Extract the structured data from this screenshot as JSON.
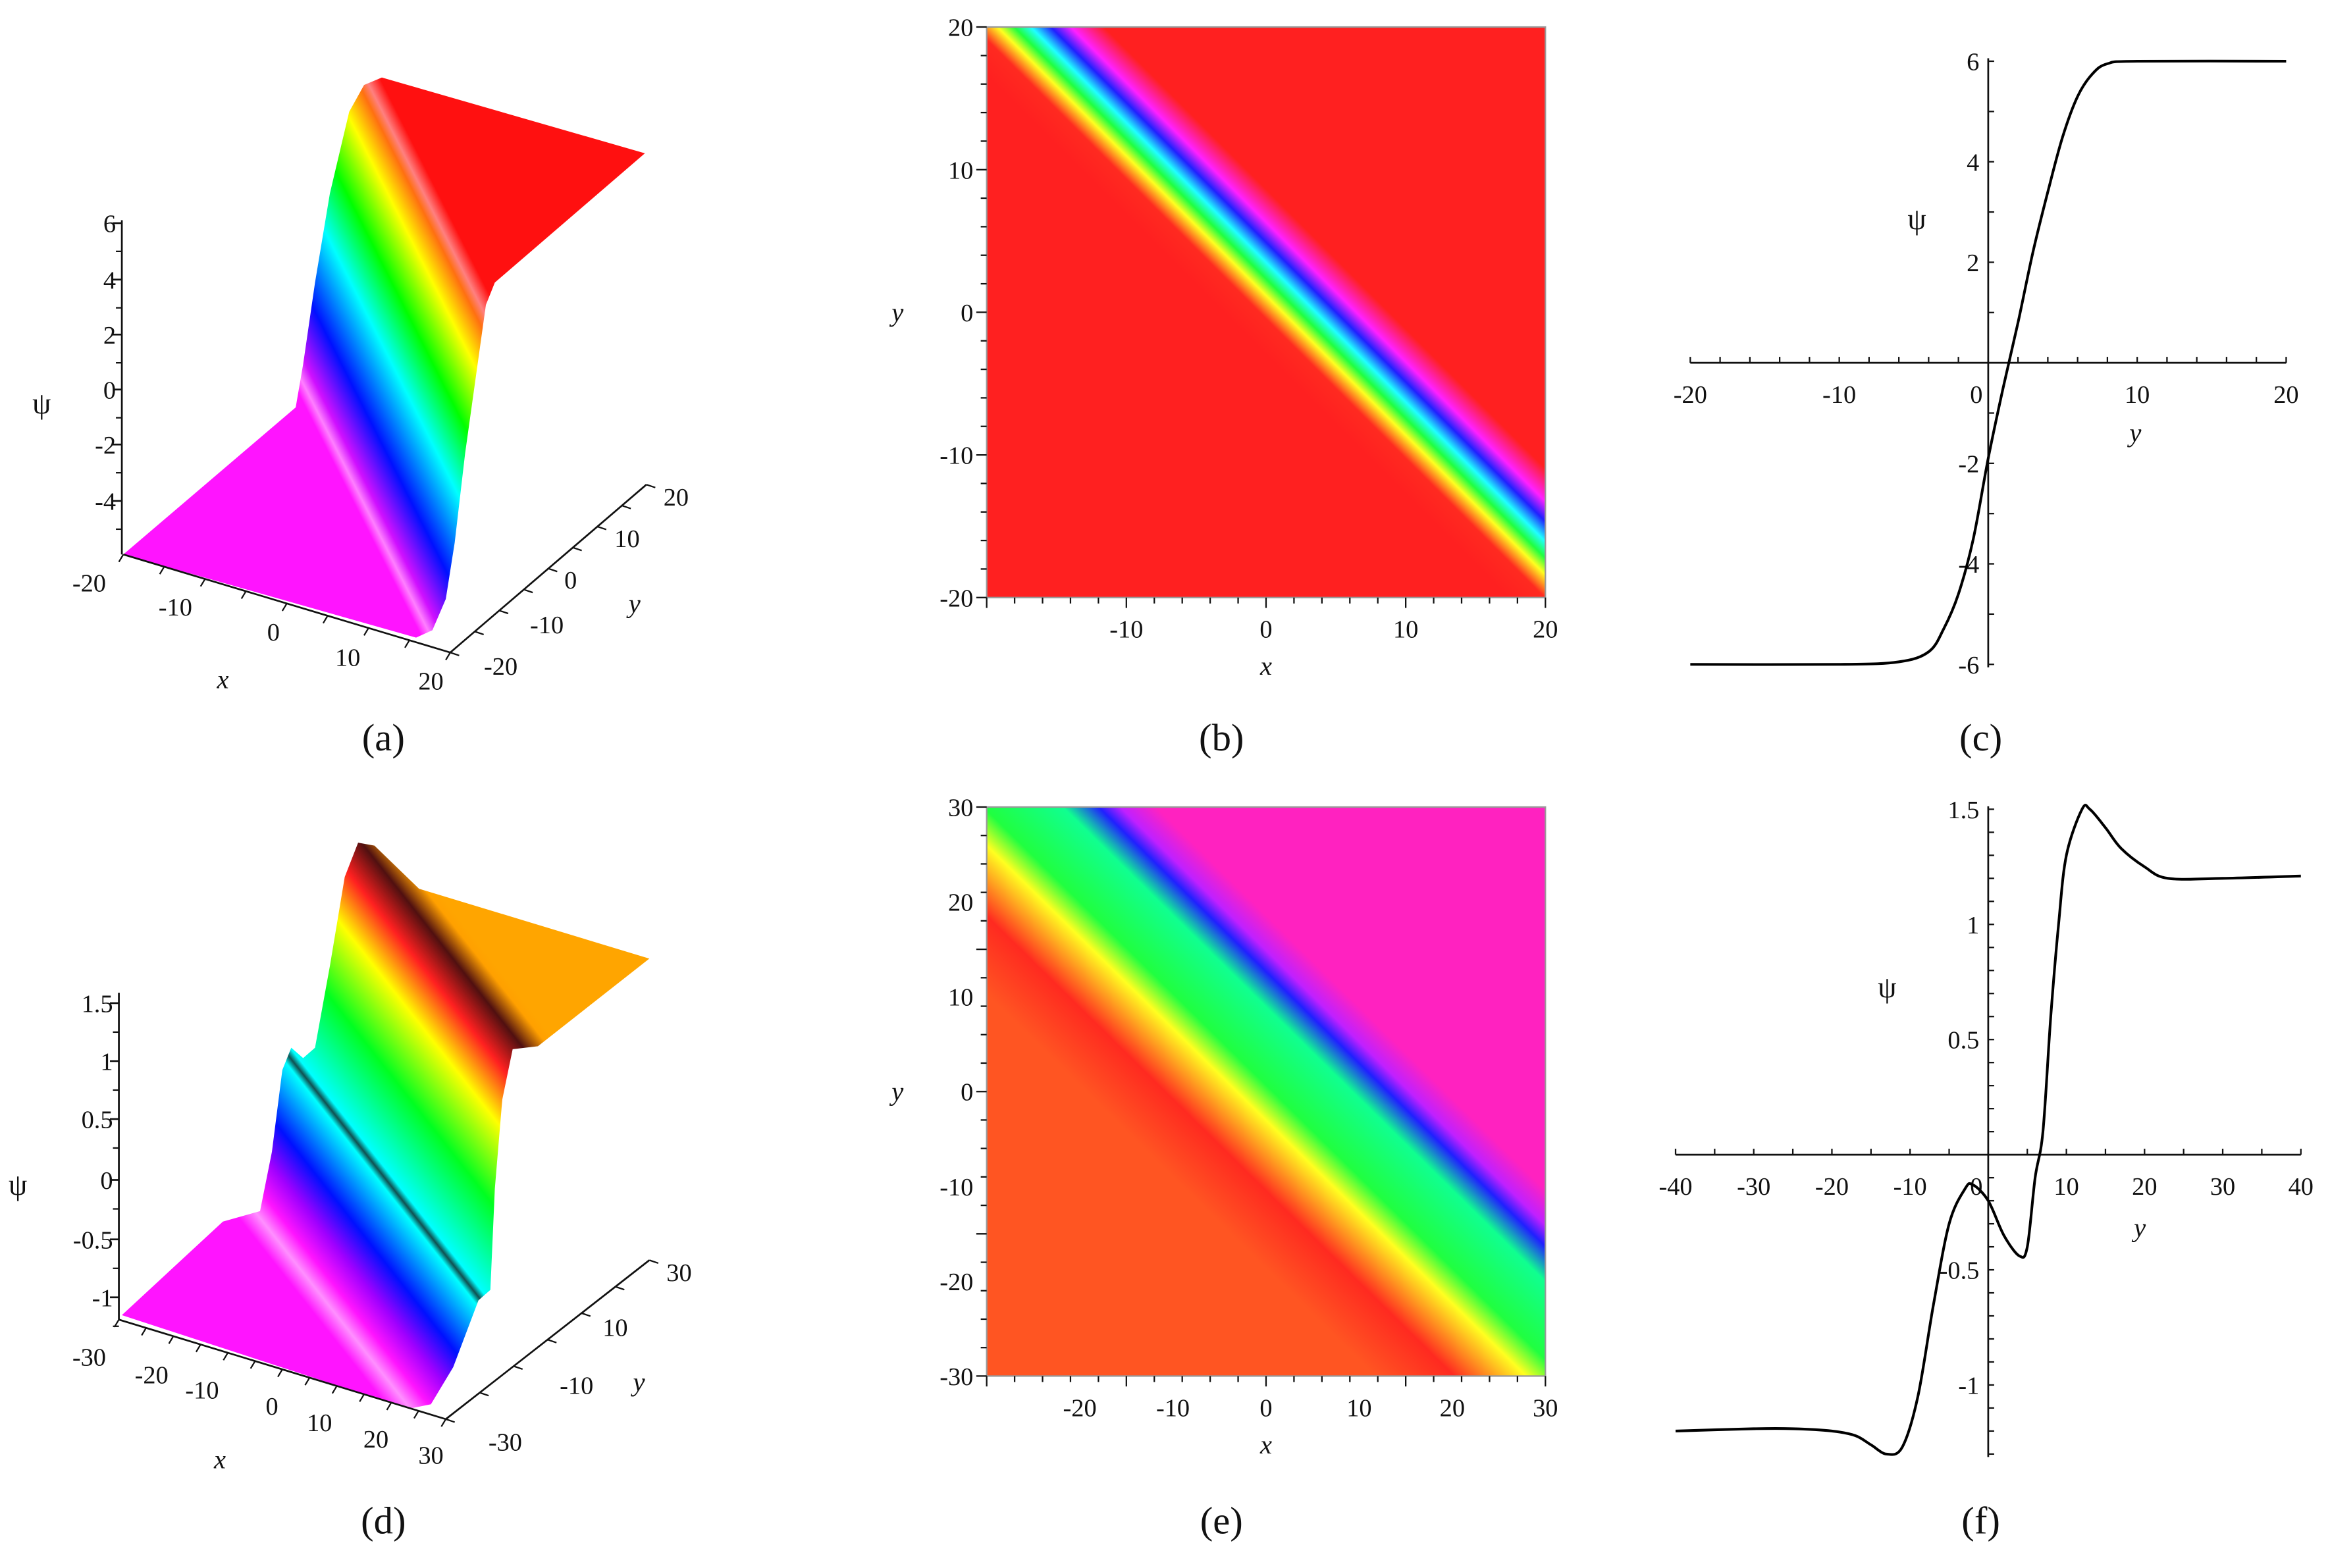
{
  "captions": [
    "(a)",
    "(b)",
    "(c)",
    "(d)",
    "(e)",
    "(f)"
  ],
  "colors": {
    "background": "#ffffff",
    "axis": "#111111",
    "curve": "#000000",
    "heat_b_base": "#ff2020",
    "heat_e_low": "#ff5522",
    "heat_e_high": "#ff22c0"
  },
  "chart_data": [
    {
      "panel": "a",
      "type": "surface3d",
      "xlabel": "x",
      "ylabel": "y",
      "zlabel": "ψ",
      "x_ticks": [
        "-20",
        "-10",
        "0",
        "10",
        "20"
      ],
      "y_ticks": [
        "-20",
        "-10",
        "0",
        "10",
        "20"
      ],
      "z_ticks": [
        "6",
        "4",
        "2",
        "0",
        "-2",
        "-4"
      ],
      "xlim": [
        -20,
        20
      ],
      "ylim": [
        -20,
        20
      ],
      "zlim": [
        -6,
        6
      ],
      "description_values": {
        "low_plateau": -6,
        "high_plateau": 6
      }
    },
    {
      "panel": "b",
      "type": "heatmap",
      "xlabel": "x",
      "ylabel": "y",
      "x_ticks": [
        "-10",
        "0",
        "10",
        "20"
      ],
      "y_ticks": [
        "20",
        "10",
        "0",
        "-10",
        "-20"
      ],
      "xlim": [
        -20,
        20
      ],
      "ylim": [
        -20,
        20
      ]
    },
    {
      "panel": "c",
      "type": "line",
      "xlabel": "y",
      "ylabel": "ψ",
      "x_ticks": [
        "-20",
        "-10",
        "0",
        "10",
        "20"
      ],
      "y_ticks": [
        "6",
        "4",
        "2",
        "-2",
        "-4",
        "-6"
      ],
      "xlim": [
        -20,
        20
      ],
      "ylim": [
        -6,
        6
      ],
      "x": [
        -20,
        -10,
        -6,
        -4,
        -3,
        -2,
        -1,
        0,
        1,
        2,
        3,
        4,
        5,
        6,
        7,
        8,
        10,
        20
      ],
      "y": [
        -6,
        -6,
        -5.95,
        -5.75,
        -5.3,
        -4.6,
        -3.5,
        -1.9,
        -0.5,
        0.8,
        2.2,
        3.4,
        4.5,
        5.3,
        5.75,
        5.95,
        6,
        6
      ]
    },
    {
      "panel": "d",
      "type": "surface3d",
      "xlabel": "x",
      "ylabel": "y",
      "zlabel": "ψ",
      "x_ticks": [
        "-30",
        "-20",
        "-10",
        "0",
        "10",
        "20",
        "30"
      ],
      "y_ticks": [
        "-30",
        "-10",
        "10",
        "30"
      ],
      "z_ticks": [
        "1.5",
        "1",
        "0.5",
        "0",
        "-0.5",
        "-1"
      ],
      "xlim": [
        -30,
        30
      ],
      "ylim": [
        -30,
        30
      ],
      "zlim": [
        -1.3,
        1.5
      ]
    },
    {
      "panel": "e",
      "type": "heatmap",
      "xlabel": "x",
      "ylabel": "y",
      "x_ticks": [
        "-20",
        "-10",
        "0",
        "10",
        "20",
        "30"
      ],
      "y_ticks": [
        "30",
        "20",
        "10",
        "0",
        "-10",
        "-20",
        "-30"
      ],
      "xlim": [
        -30,
        30
      ],
      "ylim": [
        -30,
        30
      ]
    },
    {
      "panel": "f",
      "type": "line",
      "xlabel": "y",
      "ylabel": "ψ",
      "x_ticks": [
        "-40",
        "-30",
        "-20",
        "-10",
        "0",
        "10",
        "20",
        "30",
        "40"
      ],
      "y_ticks": [
        "1.5",
        "1",
        "0.5",
        "-0.5",
        "-1"
      ],
      "xlim": [
        -40,
        40
      ],
      "ylim": [
        -1.3,
        1.5
      ],
      "x": [
        -40,
        -30,
        -25,
        -20,
        -17,
        -15,
        -13,
        -11,
        -9,
        -7,
        -5,
        -3,
        -2,
        0,
        2,
        4,
        5,
        6,
        7,
        8,
        9,
        10,
        12,
        13,
        15,
        17,
        20,
        23,
        30,
        40
      ],
      "y": [
        -1.2,
        -1.19,
        -1.19,
        -1.2,
        -1.22,
        -1.26,
        -1.3,
        -1.27,
        -1.05,
        -0.65,
        -0.3,
        -0.15,
        -0.13,
        -0.2,
        -0.35,
        -0.44,
        -0.4,
        -0.1,
        0.1,
        0.6,
        1.0,
        1.3,
        1.5,
        1.5,
        1.42,
        1.33,
        1.25,
        1.2,
        1.2,
        1.21
      ]
    }
  ]
}
